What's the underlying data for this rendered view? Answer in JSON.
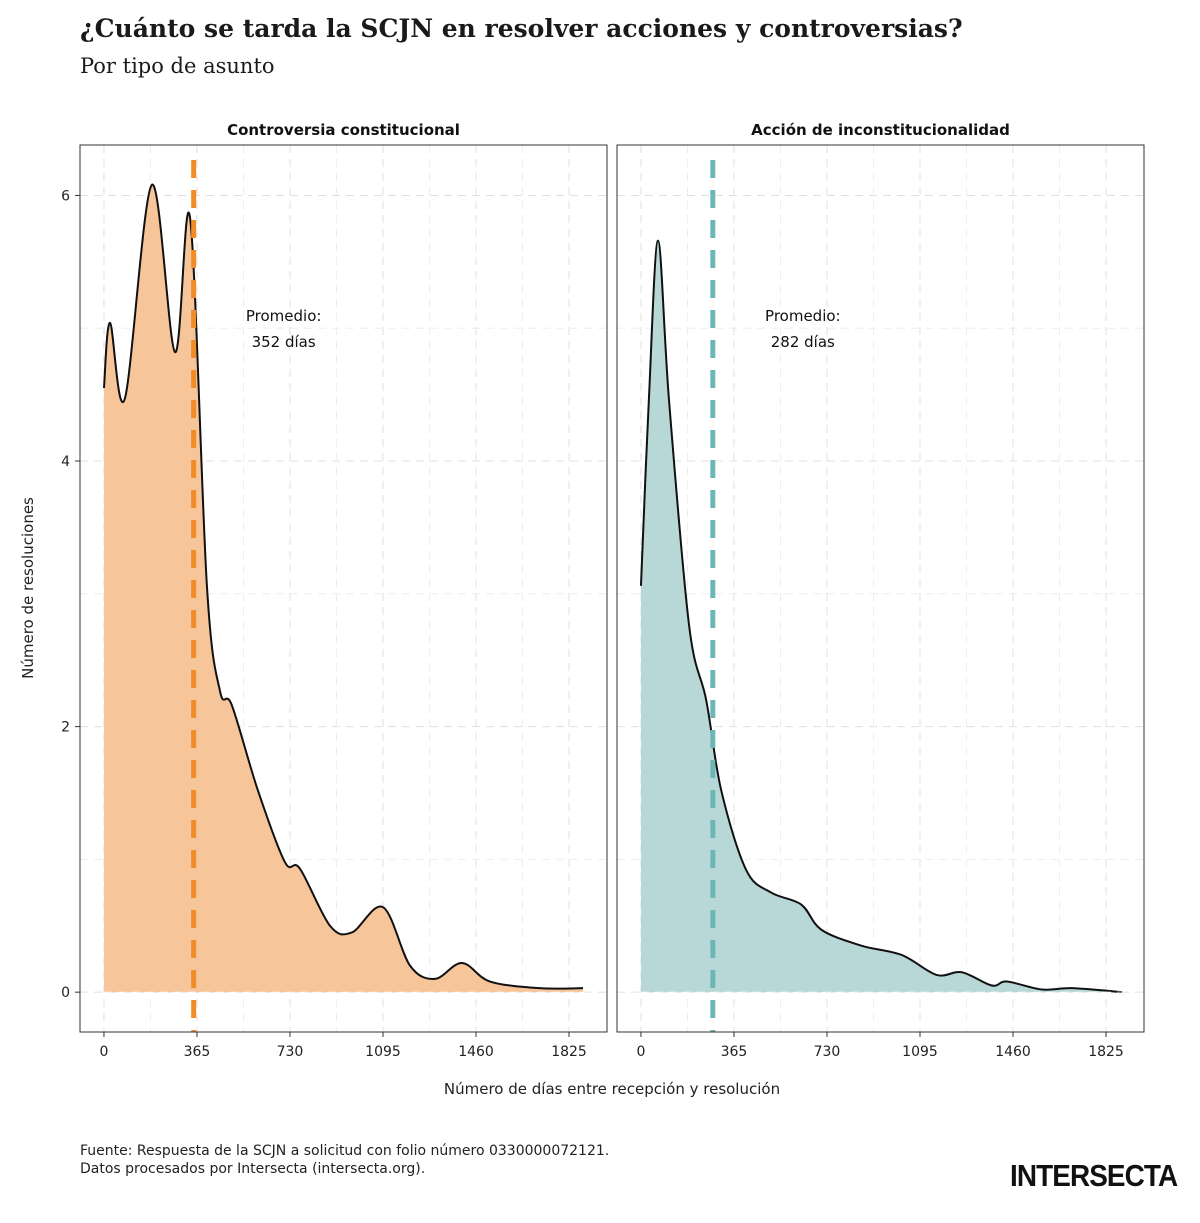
{
  "title": "¿Cuánto se tarda la SCJN en resolver acciones y controversias?",
  "subtitle": "Por tipo de asunto",
  "caption_line1": "Fuente: Respuesta de la SCJN a solicitud con folio número 0330000072121.",
  "caption_line2": "Datos procesados por Intersecta (intersecta.org).",
  "logo": "INTERSECTA",
  "chart_data": [
    {
      "type": "area",
      "title": "Controversia constitucional",
      "xlabel": "Número de días entre recepción y resolución",
      "ylabel": "Número de resoluciones",
      "xticks": [
        0,
        365,
        730,
        1095,
        1460,
        1825
      ],
      "yticks": [
        0,
        2,
        4,
        6
      ],
      "xlim": [
        -94,
        1974
      ],
      "ylim": [
        -0.3,
        6.38
      ],
      "grid": true,
      "fill": "#f7c59a",
      "mean_color": "#f28c28",
      "mean": 352,
      "annotation": [
        "Promedio:",
        "352 días"
      ],
      "x": [
        0,
        24,
        82,
        188,
        279,
        338,
        404,
        455,
        502,
        604,
        710,
        769,
        887,
        973,
        1095,
        1201,
        1299,
        1405,
        1515,
        1711,
        1880
      ],
      "y": [
        4.55,
        5.04,
        4.47,
        6.08,
        4.82,
        5.83,
        3.06,
        2.27,
        2.16,
        1.52,
        0.98,
        0.93,
        0.5,
        0.45,
        0.64,
        0.2,
        0.1,
        0.22,
        0.08,
        0.03,
        0.03
      ]
    },
    {
      "type": "area",
      "title": "Acción de inconstitucionalidad",
      "xlabel": "Número de días entre recepción y resolución",
      "ylabel": "Número de resoluciones",
      "xticks": [
        0,
        365,
        730,
        1095,
        1460,
        1825
      ],
      "yticks": [
        0,
        2,
        4,
        6
      ],
      "xlim": [
        -94,
        1974
      ],
      "ylim": [
        -0.3,
        6.38
      ],
      "grid": true,
      "fill": "#b8d8d8",
      "mean_color": "#6cb7b5",
      "mean": 282,
      "annotation": [
        "Promedio:",
        "282 días"
      ],
      "x": [
        0,
        31,
        67,
        110,
        189,
        256,
        315,
        413,
        511,
        629,
        708,
        865,
        1023,
        1160,
        1259,
        1377,
        1436,
        1574,
        1692,
        1888
      ],
      "y": [
        3.06,
        4.46,
        5.66,
        4.46,
        2.76,
        2.2,
        1.52,
        0.92,
        0.75,
        0.66,
        0.47,
        0.35,
        0.28,
        0.13,
        0.15,
        0.05,
        0.08,
        0.02,
        0.03,
        0.0
      ]
    }
  ]
}
